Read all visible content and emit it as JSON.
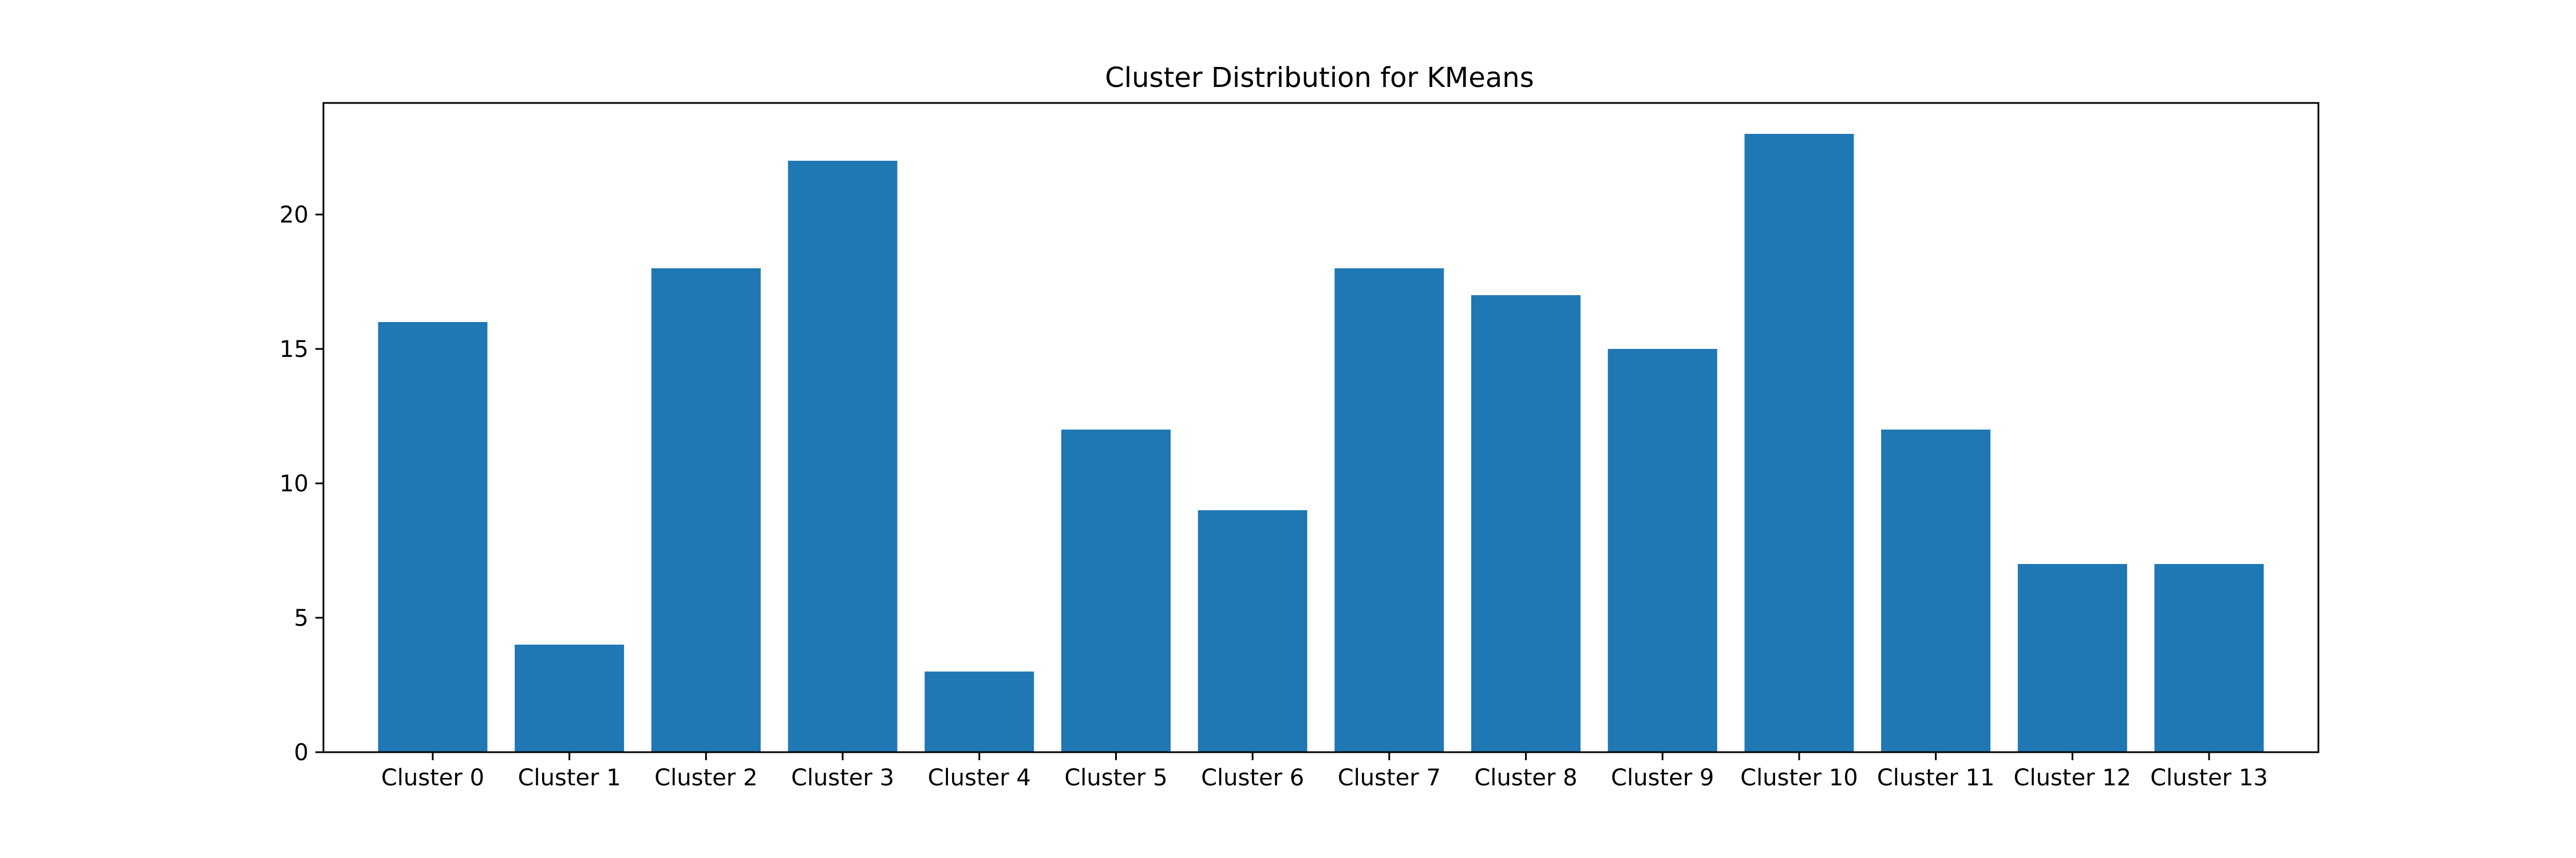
{
  "chart_data": {
    "type": "bar",
    "title": "Cluster Distribution for KMeans",
    "xlabel": "",
    "ylabel": "",
    "categories": [
      "Cluster 0",
      "Cluster 1",
      "Cluster 2",
      "Cluster 3",
      "Cluster 4",
      "Cluster 5",
      "Cluster 6",
      "Cluster 7",
      "Cluster 8",
      "Cluster 9",
      "Cluster 10",
      "Cluster 11",
      "Cluster 12",
      "Cluster 13"
    ],
    "values": [
      16,
      4,
      18,
      22,
      3,
      12,
      9,
      18,
      17,
      15,
      23,
      12,
      7,
      7
    ],
    "ylim": [
      0,
      24.15
    ],
    "yticks": [
      0,
      5,
      10,
      15,
      20
    ],
    "bar_color": "#1f77b4",
    "grid": false,
    "legend": "none"
  }
}
